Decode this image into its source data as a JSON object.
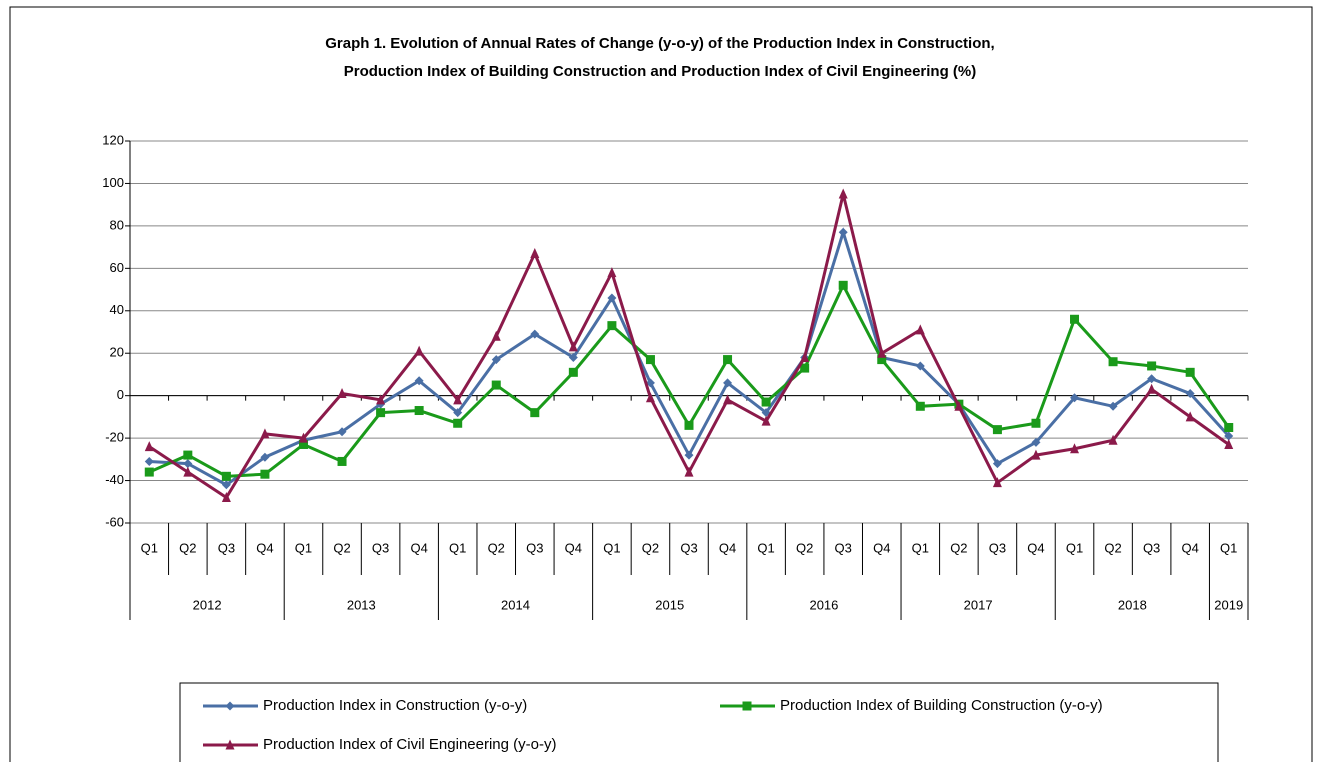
{
  "chart_data": {
    "type": "line",
    "title": [
      "Graph 1. Evolution of Annual Rates of Change (y-o-y) of the Production Index in Construction,",
      "Production Index of Building Construction and Production Index of Civil Engineering (%)"
    ],
    "categories": [
      "Q1",
      "Q2",
      "Q3",
      "Q4",
      "Q1",
      "Q2",
      "Q3",
      "Q4",
      "Q1",
      "Q2",
      "Q3",
      "Q4",
      "Q1",
      "Q2",
      "Q3",
      "Q4",
      "Q1",
      "Q2",
      "Q3",
      "Q4",
      "Q1",
      "Q2",
      "Q3",
      "Q4",
      "Q1",
      "Q2",
      "Q3",
      "Q4",
      "Q1"
    ],
    "groups": [
      {
        "label": "2012",
        "count": 4
      },
      {
        "label": "2013",
        "count": 4
      },
      {
        "label": "2014",
        "count": 4
      },
      {
        "label": "2015",
        "count": 4
      },
      {
        "label": "2016",
        "count": 4
      },
      {
        "label": "2017",
        "count": 4
      },
      {
        "label": "2018",
        "count": 4
      },
      {
        "label": "2019",
        "count": 1
      }
    ],
    "ylim": [
      -60,
      120
    ],
    "yticks": [
      -60,
      -40,
      -20,
      0,
      20,
      40,
      60,
      80,
      100,
      120
    ],
    "grid": true,
    "series": [
      {
        "name": "Production Index in Construction (y-o-y)",
        "color": "#4a6fa5",
        "marker": "diamond",
        "values": [
          -31,
          -32,
          -42,
          -29,
          -21,
          -17,
          -4,
          7,
          -8,
          17,
          29,
          18,
          46,
          6,
          -28,
          6,
          -8,
          18,
          77,
          18,
          14,
          -4,
          -32,
          -22,
          -1,
          -5,
          8,
          1,
          -19
        ]
      },
      {
        "name": "Production Index of Building Construction (y-o-y)",
        "color": "#1a9a1a",
        "marker": "square",
        "values": [
          -36,
          -28,
          -38,
          -37,
          -23,
          -31,
          -8,
          -7,
          -13,
          5,
          -8,
          11,
          33,
          17,
          -14,
          17,
          -3,
          13,
          52,
          17,
          -5,
          -4,
          -16,
          -13,
          36,
          16,
          14,
          11,
          -15
        ]
      },
      {
        "name": "Production Index of Civil Engineering (y-o-y)",
        "color": "#8b1a4a",
        "marker": "triangle",
        "values": [
          -24,
          -36,
          -48,
          -18,
          -20,
          1,
          -2,
          21,
          -2,
          28,
          67,
          23,
          58,
          -1,
          -36,
          -2,
          -12,
          18,
          95,
          20,
          31,
          -5,
          -41,
          -28,
          -25,
          -21,
          3,
          -10,
          -23
        ]
      }
    ]
  }
}
